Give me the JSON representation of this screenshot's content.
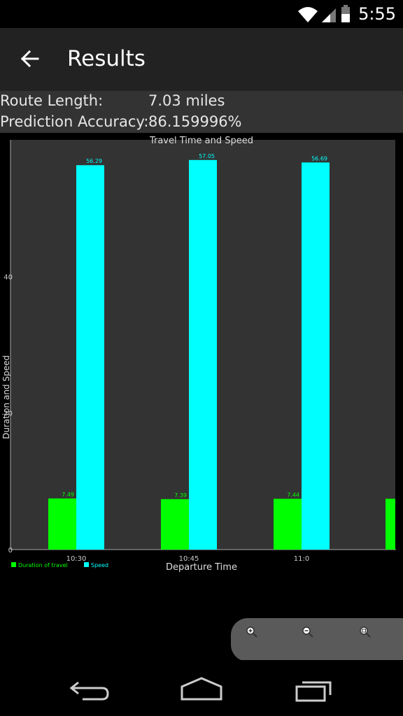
{
  "status": {
    "time": "5:55"
  },
  "header": {
    "title": "Results"
  },
  "info": {
    "route_label": "Route Length:",
    "route_value": "7.03 miles",
    "accuracy_label": "Prediction Accuracy:",
    "accuracy_value": "86.159996%"
  },
  "chart_data": {
    "type": "bar",
    "title": "Travel Time and Speed",
    "xlabel": "Departure Time",
    "ylabel": "Duration and Speed",
    "categories": [
      "10:30",
      "10:45",
      "11:0"
    ],
    "series": [
      {
        "name": "Duration of travel",
        "color": "#00ff00",
        "values": [
          7.49,
          7.39,
          7.44
        ]
      },
      {
        "name": "Speed",
        "color": "#00ffff",
        "values": [
          56.29,
          57.05,
          56.69
        ]
      }
    ],
    "yticks": [
      0,
      20,
      40
    ],
    "ylim": [
      0,
      60
    ],
    "legend": "bottom-left",
    "grid": false,
    "background": "#333333"
  },
  "zoom": {
    "icons": [
      "zoom-in-icon",
      "zoom-out-icon",
      "zoom-reset-icon"
    ]
  },
  "nav": {
    "icons": [
      "back-icon",
      "home-icon",
      "recents-icon"
    ]
  }
}
